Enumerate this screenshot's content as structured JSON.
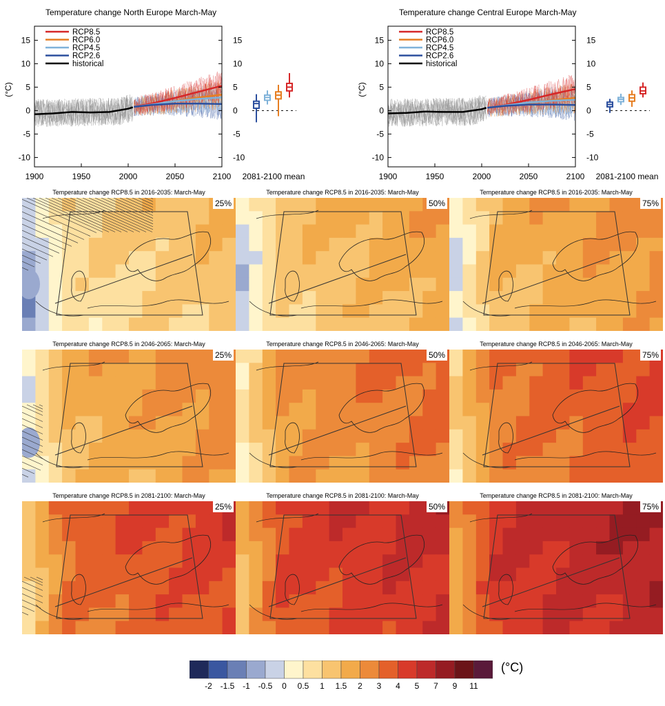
{
  "chart_data": [
    {
      "type": "line",
      "title": "Temperature change North Europe March-May",
      "ylabel": "(°C)",
      "xlim": [
        1900,
        2100
      ],
      "ylim": [
        -12,
        18
      ],
      "xticks": [
        "1900",
        "1950",
        "2000",
        "2050",
        "2100"
      ],
      "yticks": [
        "15",
        "10",
        "5",
        "0",
        "-5",
        "-10"
      ],
      "boxplot_label": "2081-2100 mean",
      "series": [
        {
          "name": "RCP8.5",
          "color": "#d62728",
          "x": [
            2006,
            2025,
            2050,
            2075,
            2100
          ],
          "y": [
            0.8,
            1.5,
            2.7,
            4.0,
            5.3
          ]
        },
        {
          "name": "RCP6.0",
          "color": "#e67e22",
          "x": [
            2006,
            2025,
            2050,
            2075,
            2100
          ],
          "y": [
            0.8,
            1.2,
            2.0,
            2.8,
            3.4
          ]
        },
        {
          "name": "RCP4.5",
          "color": "#7fb2d9",
          "x": [
            2006,
            2025,
            2050,
            2075,
            2100
          ],
          "y": [
            0.8,
            1.3,
            2.0,
            2.5,
            2.8
          ]
        },
        {
          "name": "RCP2.6",
          "color": "#2c4f9e",
          "x": [
            2006,
            2025,
            2050,
            2075,
            2100
          ],
          "y": [
            0.8,
            1.2,
            1.5,
            1.5,
            1.4
          ]
        },
        {
          "name": "historical",
          "color": "#000000",
          "x": [
            1900,
            1920,
            1940,
            1960,
            1980,
            2000,
            2005
          ],
          "y": [
            -0.8,
            -0.6,
            -0.3,
            -0.4,
            -0.3,
            0.4,
            0.7
          ]
        }
      ],
      "boxes": [
        {
          "name": "RCP2.6",
          "color": "#2c4f9e",
          "min": -2.5,
          "q1": 0.5,
          "median": 1.5,
          "q3": 2.0,
          "max": 3.5
        },
        {
          "name": "RCP4.5",
          "color": "#7fb2d9",
          "min": 1.3,
          "q1": 2.2,
          "median": 2.8,
          "q3": 3.3,
          "max": 4.3
        },
        {
          "name": "RCP6.0",
          "color": "#e67e22",
          "min": -1.2,
          "q1": 2.5,
          "median": 3.3,
          "q3": 4.0,
          "max": 5.5
        },
        {
          "name": "RCP8.5",
          "color": "#d62728",
          "min": 2.8,
          "q1": 4.2,
          "median": 5.0,
          "q3": 5.8,
          "max": 8.0
        }
      ]
    },
    {
      "type": "line",
      "title": "Temperature change Central Europe March-May",
      "ylabel": "(°C)",
      "xlim": [
        1900,
        2100
      ],
      "ylim": [
        -12,
        18
      ],
      "xticks": [
        "1900",
        "1950",
        "2000",
        "2050",
        "2100"
      ],
      "yticks": [
        "15",
        "10",
        "5",
        "0",
        "-5",
        "-10"
      ],
      "boxplot_label": "2081-2100 mean",
      "series": [
        {
          "name": "RCP8.5",
          "color": "#d62728",
          "x": [
            2006,
            2025,
            2050,
            2075,
            2100
          ],
          "y": [
            0.6,
            1.2,
            2.3,
            3.5,
            4.6
          ]
        },
        {
          "name": "RCP6.0",
          "color": "#e67e22",
          "x": [
            2006,
            2025,
            2050,
            2075,
            2100
          ],
          "y": [
            0.6,
            1.0,
            1.6,
            2.2,
            2.7
          ]
        },
        {
          "name": "RCP4.5",
          "color": "#7fb2d9",
          "x": [
            2006,
            2025,
            2050,
            2075,
            2100
          ],
          "y": [
            0.6,
            1.1,
            1.7,
            2.1,
            2.3
          ]
        },
        {
          "name": "RCP2.6",
          "color": "#2c4f9e",
          "x": [
            2006,
            2025,
            2050,
            2075,
            2100
          ],
          "y": [
            0.6,
            1.0,
            1.3,
            1.3,
            1.2
          ]
        },
        {
          "name": "historical",
          "color": "#000000",
          "x": [
            1900,
            1920,
            1940,
            1960,
            1980,
            2000,
            2005
          ],
          "y": [
            -0.6,
            -0.5,
            -0.2,
            -0.3,
            -0.3,
            0.3,
            0.6
          ]
        }
      ],
      "boxes": [
        {
          "name": "RCP2.6",
          "color": "#2c4f9e",
          "min": -0.5,
          "q1": 0.8,
          "median": 1.3,
          "q3": 1.8,
          "max": 2.5
        },
        {
          "name": "RCP4.5",
          "color": "#7fb2d9",
          "min": 1.2,
          "q1": 1.9,
          "median": 2.4,
          "q3": 2.8,
          "max": 3.6
        },
        {
          "name": "RCP6.0",
          "color": "#e67e22",
          "min": 0.8,
          "q1": 2.0,
          "median": 2.7,
          "q3": 3.4,
          "max": 4.3
        },
        {
          "name": "RCP8.5",
          "color": "#d62728",
          "min": 2.8,
          "q1": 3.6,
          "median": 4.2,
          "q3": 5.0,
          "max": 6.0
        }
      ]
    },
    {
      "type": "heatmap",
      "panels": [
        {
          "title": "Temperature change RCP8.5 in 2016-2035: March-May",
          "percentile": "25%"
        },
        {
          "title": "Temperature change RCP8.5 in 2016-2035: March-May",
          "percentile": "50%"
        },
        {
          "title": "Temperature change RCP8.5 in 2016-2035: March-May",
          "percentile": "75%"
        },
        {
          "title": "Temperature change RCP8.5 in 2046-2065: March-May",
          "percentile": "25%"
        },
        {
          "title": "Temperature change RCP8.5 in 2046-2065: March-May",
          "percentile": "50%"
        },
        {
          "title": "Temperature change RCP8.5 in 2046-2065: March-May",
          "percentile": "75%"
        },
        {
          "title": "Temperature change RCP8.5 in 2081-2100: March-May",
          "percentile": "25%"
        },
        {
          "title": "Temperature change RCP8.5 in 2081-2100: March-May",
          "percentile": "50%"
        },
        {
          "title": "Temperature change RCP8.5 in 2081-2100: March-May",
          "percentile": "75%"
        }
      ],
      "colorbar": {
        "unit": "(°C)",
        "ticks": [
          "-2",
          "-1.5",
          "-1",
          "-0.5",
          "0",
          "0.5",
          "1",
          "1.5",
          "2",
          "3",
          "4",
          "5",
          "7",
          "9",
          "11"
        ],
        "colors": [
          "#1f2a5a",
          "#3a57a0",
          "#6a7fb5",
          "#9aa9cf",
          "#c9d2e6",
          "#fff5cc",
          "#fde0a0",
          "#f8c470",
          "#f2aa4a",
          "#ec8a3a",
          "#e4602a",
          "#d83a2a",
          "#bd2a2a",
          "#951c22",
          "#6b1418",
          "#5a1a3a"
        ]
      }
    }
  ]
}
